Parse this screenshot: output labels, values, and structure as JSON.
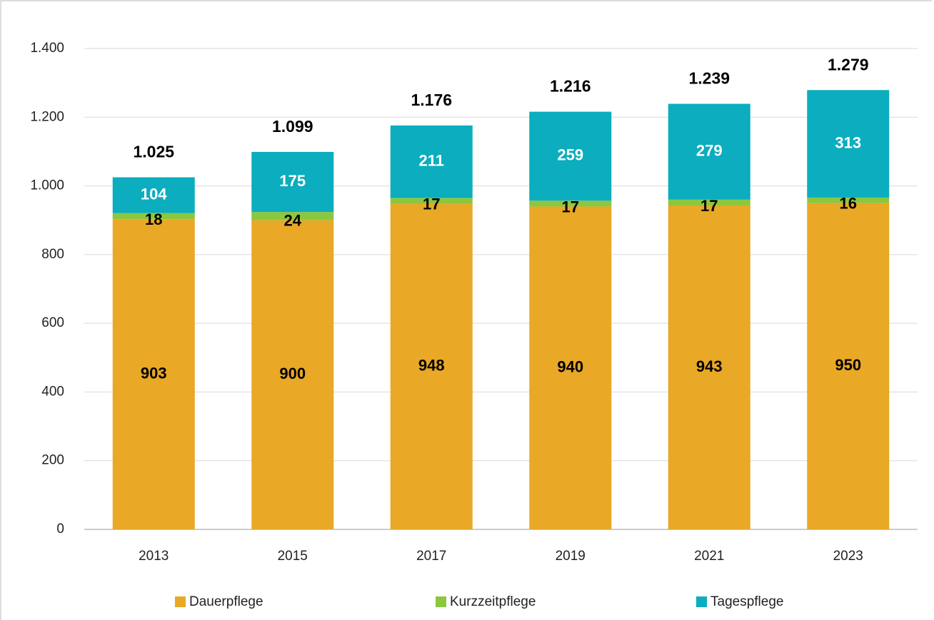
{
  "chart_data": {
    "type": "stacked_bar",
    "categories": [
      "2013",
      "2015",
      "2017",
      "2019",
      "2021",
      "2023"
    ],
    "series": [
      {
        "name": "Dauerpflege",
        "color": "#e9a825",
        "label_color": "#000000",
        "values": [
          903,
          900,
          948,
          940,
          943,
          950
        ]
      },
      {
        "name": "Kurzzeitpflege",
        "color": "#8dc63f",
        "label_color": "#000000",
        "values": [
          18,
          24,
          17,
          17,
          17,
          16
        ]
      },
      {
        "name": "Tagespflege",
        "color": "#0badbe",
        "label_color": "#ffffff",
        "values": [
          104,
          175,
          211,
          259,
          279,
          313
        ]
      }
    ],
    "totals": {
      "values": [
        1025,
        1099,
        1176,
        1216,
        1239,
        1279
      ],
      "value_labels": [
        "1.025",
        "1.099",
        "1.176",
        "1.216",
        "1.239",
        "1.279"
      ]
    },
    "ylim": [
      0,
      1400
    ],
    "yticks": [
      0,
      200,
      400,
      600,
      800,
      {
        "value": 1000,
        "label": "1.000"
      },
      {
        "value": 1200,
        "label": "1.200"
      },
      {
        "value": 1400,
        "label": "1.400"
      }
    ],
    "grid": true
  }
}
